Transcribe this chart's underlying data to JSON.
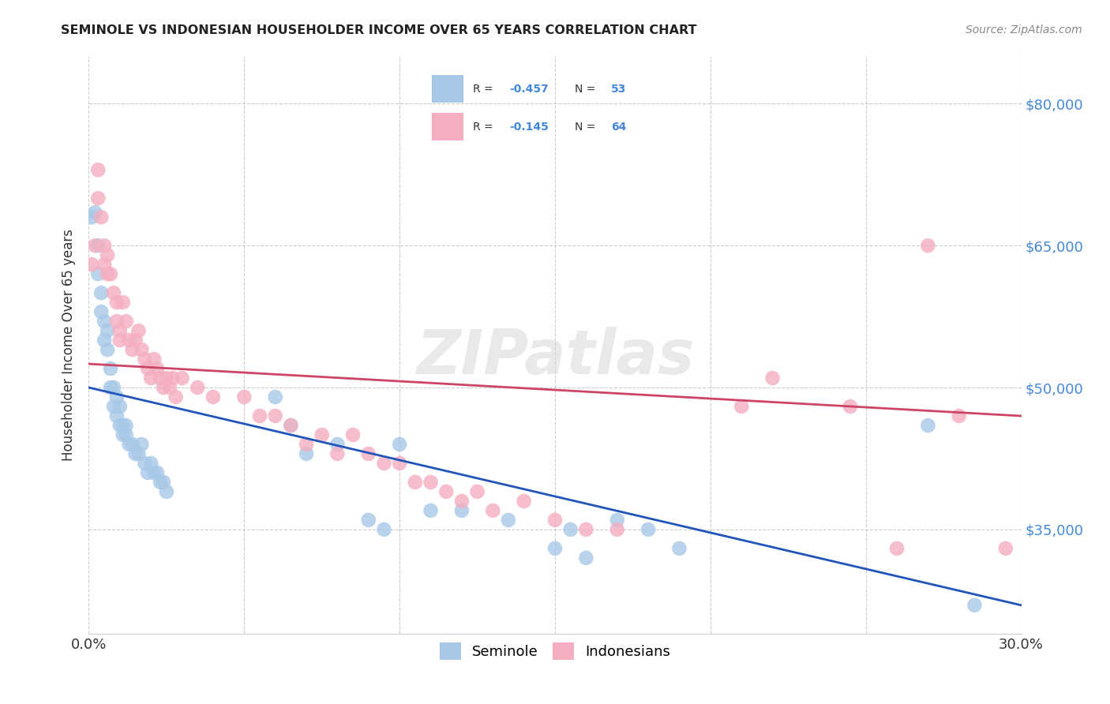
{
  "title": "SEMINOLE VS INDONESIAN HOUSEHOLDER INCOME OVER 65 YEARS CORRELATION CHART",
  "source": "Source: ZipAtlas.com",
  "ylabel": "Householder Income Over 65 years",
  "xlim": [
    0.0,
    0.3
  ],
  "ylim": [
    24000,
    85000
  ],
  "yticks": [
    35000,
    50000,
    65000,
    80000
  ],
  "ytick_labels": [
    "$35,000",
    "$50,000",
    "$65,000",
    "$80,000"
  ],
  "xticks": [
    0.0,
    0.05,
    0.1,
    0.15,
    0.2,
    0.25,
    0.3
  ],
  "xtick_labels": [
    "0.0%",
    "",
    "",
    "",
    "",
    "",
    "30.0%"
  ],
  "seminole_color": "#a8c8e8",
  "indonesian_color": "#f4aec0",
  "seminole_line_color": "#2255bb",
  "indonesian_line_color": "#cc4466",
  "background_color": "#ffffff",
  "watermark": "ZIPatlas",
  "seminole_line_y0": 50000,
  "seminole_line_y1": 27000,
  "indonesian_line_y0": 52500,
  "indonesian_line_y1": 47000,
  "seminole_x": [
    0.001,
    0.002,
    0.003,
    0.003,
    0.004,
    0.004,
    0.005,
    0.005,
    0.006,
    0.006,
    0.007,
    0.007,
    0.008,
    0.008,
    0.009,
    0.009,
    0.01,
    0.01,
    0.011,
    0.011,
    0.012,
    0.012,
    0.013,
    0.014,
    0.015,
    0.016,
    0.017,
    0.018,
    0.019,
    0.02,
    0.021,
    0.022,
    0.023,
    0.024,
    0.025,
    0.06,
    0.065,
    0.07,
    0.08,
    0.09,
    0.095,
    0.1,
    0.11,
    0.12,
    0.135,
    0.15,
    0.155,
    0.16,
    0.17,
    0.18,
    0.19,
    0.27,
    0.285
  ],
  "seminole_y": [
    68000,
    68500,
    65000,
    62000,
    60000,
    58000,
    57000,
    55000,
    56000,
    54000,
    52000,
    50000,
    50000,
    48000,
    49000,
    47000,
    48000,
    46000,
    46000,
    45000,
    46000,
    45000,
    44000,
    44000,
    43000,
    43000,
    44000,
    42000,
    41000,
    42000,
    41000,
    41000,
    40000,
    40000,
    39000,
    49000,
    46000,
    43000,
    44000,
    36000,
    35000,
    44000,
    37000,
    37000,
    36000,
    33000,
    35000,
    32000,
    36000,
    35000,
    33000,
    46000,
    27000
  ],
  "indonesian_x": [
    0.001,
    0.002,
    0.003,
    0.003,
    0.004,
    0.005,
    0.005,
    0.006,
    0.006,
    0.007,
    0.008,
    0.009,
    0.009,
    0.01,
    0.01,
    0.011,
    0.012,
    0.013,
    0.014,
    0.015,
    0.016,
    0.017,
    0.018,
    0.019,
    0.02,
    0.021,
    0.022,
    0.023,
    0.024,
    0.025,
    0.026,
    0.027,
    0.028,
    0.03,
    0.035,
    0.04,
    0.05,
    0.055,
    0.06,
    0.065,
    0.07,
    0.075,
    0.08,
    0.085,
    0.09,
    0.095,
    0.1,
    0.105,
    0.11,
    0.115,
    0.12,
    0.125,
    0.13,
    0.14,
    0.15,
    0.16,
    0.17,
    0.21,
    0.22,
    0.245,
    0.26,
    0.27,
    0.28,
    0.295
  ],
  "indonesian_y": [
    63000,
    65000,
    73000,
    70000,
    68000,
    65000,
    63000,
    64000,
    62000,
    62000,
    60000,
    59000,
    57000,
    56000,
    55000,
    59000,
    57000,
    55000,
    54000,
    55000,
    56000,
    54000,
    53000,
    52000,
    51000,
    53000,
    52000,
    51000,
    50000,
    51000,
    50000,
    51000,
    49000,
    51000,
    50000,
    49000,
    49000,
    47000,
    47000,
    46000,
    44000,
    45000,
    43000,
    45000,
    43000,
    42000,
    42000,
    40000,
    40000,
    39000,
    38000,
    39000,
    37000,
    38000,
    36000,
    35000,
    35000,
    48000,
    51000,
    48000,
    33000,
    65000,
    47000,
    33000
  ]
}
